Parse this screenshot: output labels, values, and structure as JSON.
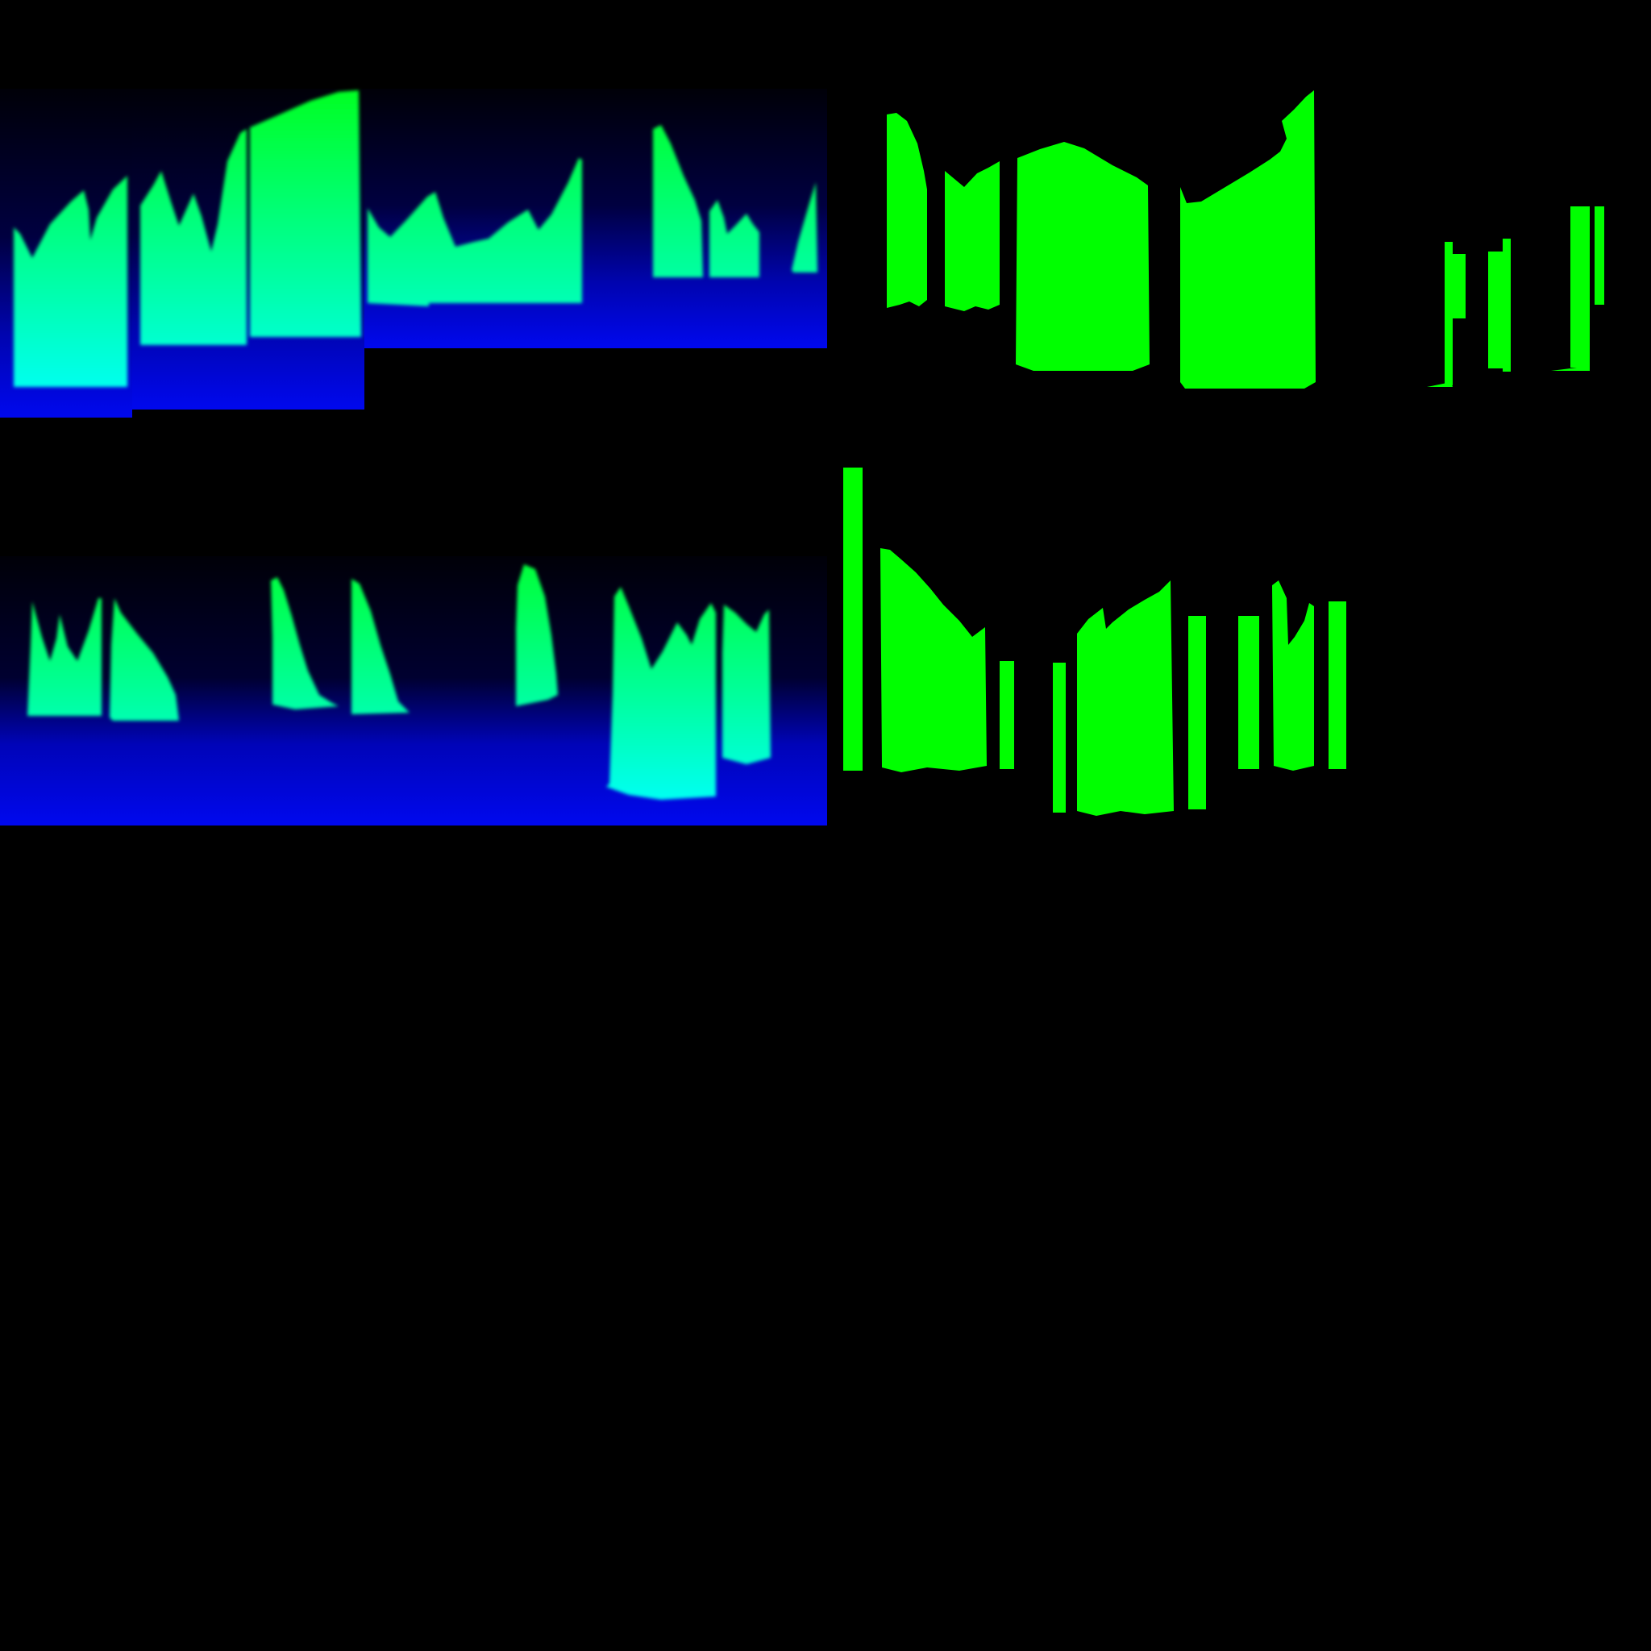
{
  "colors": {
    "background": "#000000",
    "gradient_top": "#000010",
    "gradient_mid": "#000066",
    "gradient_bottom": "#0008ee",
    "flame_top": "#00ff24",
    "flame_bottom": "#00fff4",
    "mask_green": "#00ff00"
  },
  "panels": [
    {
      "name": "gradient-flame-sheet-a",
      "kind": "gradient"
    },
    {
      "name": "solid-mask-sheet-a",
      "kind": "mask"
    },
    {
      "name": "gradient-flame-sheet-b",
      "kind": "gradient"
    },
    {
      "name": "solid-mask-sheet-b",
      "kind": "mask"
    }
  ]
}
